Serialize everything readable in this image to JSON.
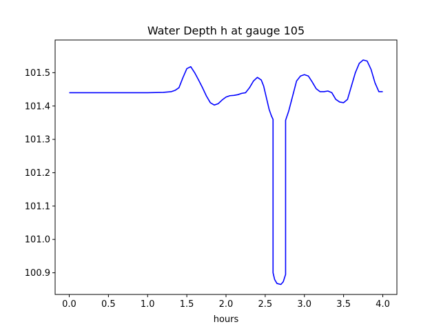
{
  "chart_data": {
    "type": "line",
    "title": "Water Depth h at gauge 105",
    "xlabel": "hours",
    "ylabel": "",
    "xlim": [
      -0.18,
      4.18
    ],
    "ylim": [
      100.835,
      101.598
    ],
    "xticks": [
      0.0,
      0.5,
      1.0,
      1.5,
      2.0,
      2.5,
      3.0,
      3.5,
      4.0
    ],
    "xtick_labels": [
      "0.0",
      "0.5",
      "1.0",
      "1.5",
      "2.0",
      "2.5",
      "3.0",
      "3.5",
      "4.0"
    ],
    "yticks": [
      100.9,
      101.0,
      101.1,
      101.2,
      101.3,
      101.4,
      101.5
    ],
    "ytick_labels": [
      "100.9",
      "101.0",
      "101.1",
      "101.2",
      "101.3",
      "101.4",
      "101.5"
    ],
    "grid": false,
    "series": [
      {
        "color": "#0000ff",
        "x": [
          0.0,
          0.5,
          1.0,
          1.2,
          1.3,
          1.35,
          1.4,
          1.45,
          1.5,
          1.55,
          1.6,
          1.65,
          1.7,
          1.75,
          1.8,
          1.85,
          1.9,
          1.95,
          2.0,
          2.05,
          2.1,
          2.15,
          2.2,
          2.25,
          2.3,
          2.35,
          2.4,
          2.45,
          2.48,
          2.52,
          2.55,
          2.58,
          2.6,
          2.6,
          2.62,
          2.65,
          2.7,
          2.73,
          2.76,
          2.76,
          2.8,
          2.85,
          2.9,
          2.95,
          3.0,
          3.05,
          3.1,
          3.15,
          3.2,
          3.25,
          3.3,
          3.35,
          3.4,
          3.45,
          3.5,
          3.55,
          3.6,
          3.65,
          3.7,
          3.75,
          3.8,
          3.85,
          3.9,
          3.95,
          4.0
        ],
        "y": [
          101.44,
          101.44,
          101.44,
          101.441,
          101.443,
          101.447,
          101.455,
          101.485,
          101.512,
          101.518,
          101.5,
          101.478,
          101.455,
          101.43,
          101.41,
          101.403,
          101.407,
          101.418,
          101.427,
          101.431,
          101.432,
          101.434,
          101.438,
          101.44,
          101.455,
          101.475,
          101.486,
          101.478,
          101.46,
          101.42,
          101.39,
          101.37,
          101.36,
          100.9,
          100.88,
          100.868,
          100.865,
          100.873,
          100.895,
          101.357,
          101.385,
          101.43,
          101.475,
          101.49,
          101.494,
          101.49,
          101.472,
          101.452,
          101.443,
          101.443,
          101.445,
          101.44,
          101.42,
          101.412,
          101.41,
          101.42,
          101.46,
          101.5,
          101.528,
          101.538,
          101.535,
          101.51,
          101.47,
          101.443,
          101.443
        ]
      }
    ]
  }
}
